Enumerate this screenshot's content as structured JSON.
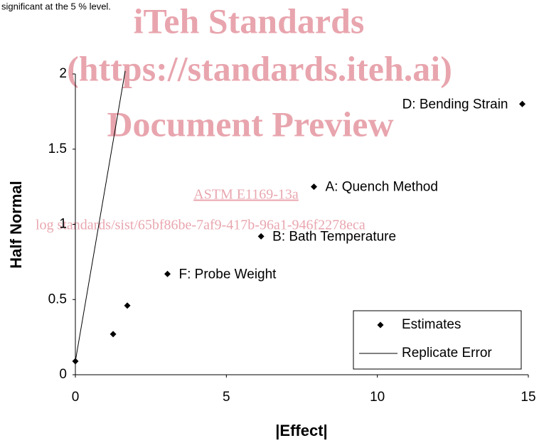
{
  "page_text": "significant at the 5 % level.",
  "watermark": [
    "iTeh Standards",
    "(https://standards.iteh.ai)",
    "Document Preview",
    "ASTM E1169-13a",
    "log standards/sist/65bf86be-7af9-417b-96a1-946f2278eca"
  ],
  "chart_data": {
    "type": "scatter",
    "xlabel": "|Effect|",
    "ylabel": "Half Normal",
    "xlim": [
      0,
      15
    ],
    "xticks": [
      0,
      5,
      10,
      15
    ],
    "ylim": [
      0,
      2
    ],
    "yticks": [
      0,
      0.5,
      1,
      1.5,
      2
    ],
    "grid": false,
    "legend": "lower right",
    "series": [
      {
        "name": "Estimates",
        "type": "scatter",
        "color": "#000000",
        "x": [
          0,
          1.25,
          1.72,
          3.05,
          6.15,
          7.9,
          14.8
        ],
        "values": [
          0.09,
          0.27,
          0.46,
          0.67,
          0.92,
          1.25,
          1.8
        ],
        "labels": [
          null,
          null,
          null,
          "F: Probe Weight",
          "B: Bath Temperature",
          "A: Quench Method",
          "D: Bending Strain"
        ]
      },
      {
        "name": "Replicate Error",
        "type": "line",
        "color": "#000000",
        "x": [
          0,
          1.65
        ],
        "values": [
          0.09,
          2.02
        ]
      }
    ]
  }
}
